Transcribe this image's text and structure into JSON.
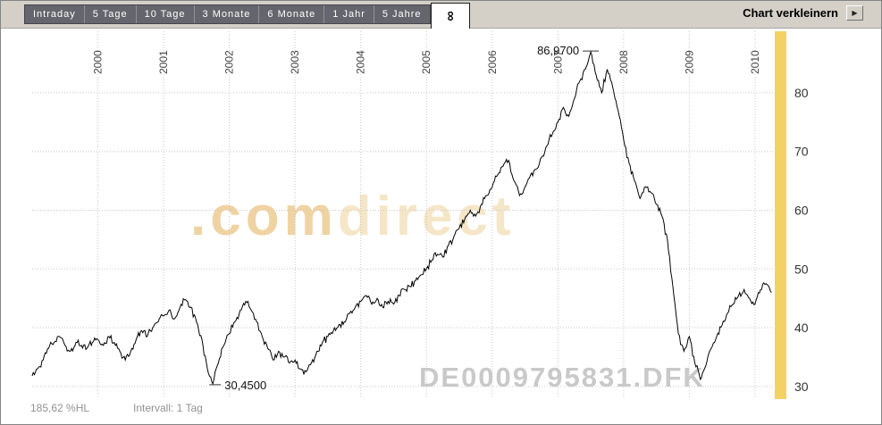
{
  "toolbar": {
    "tabs": [
      "Intraday",
      "5 Tage",
      "10 Tage",
      "3 Monate",
      "6 Monate",
      "1 Jahr",
      "5 Jahre"
    ],
    "active_tab": "∞",
    "shrink_label": "Chart verkleinern",
    "shrink_button_icon": "▶"
  },
  "status": {
    "range_label": "185,62 %HL",
    "interval_label": "Intervall: 1 Tag"
  },
  "watermarks": {
    "brand_prefix": ".com",
    "brand_suffix": "direct",
    "instrument": "DE0009795831.DFK"
  },
  "annotations": {
    "high": {
      "label": "86,9700",
      "x": 2007.5,
      "value": 86.97
    },
    "low": {
      "label": "30,4500",
      "x": 2001.75,
      "value": 30.45
    }
  },
  "chart_data": {
    "type": "line",
    "title": "",
    "xlabel": "",
    "ylabel": "",
    "x_start": 1999.0,
    "x_step": 0.0833333,
    "values": [
      31.8,
      33.0,
      34.5,
      36.5,
      37.5,
      38.5,
      37.0,
      36.0,
      37.5,
      37.0,
      36.5,
      37.5,
      38.0,
      37.0,
      38.5,
      37.5,
      36.0,
      34.5,
      36.0,
      38.0,
      39.5,
      38.5,
      40.0,
      41.0,
      42.0,
      43.0,
      41.5,
      43.5,
      44.8,
      43.5,
      41.0,
      38.0,
      33.0,
      30.45,
      34.0,
      37.0,
      39.0,
      41.0,
      43.0,
      44.5,
      43.0,
      41.0,
      38.5,
      36.5,
      34.5,
      36.0,
      35.0,
      34.0,
      34.5,
      33.0,
      32.5,
      34.0,
      36.0,
      37.5,
      38.5,
      39.5,
      40.5,
      41.0,
      42.5,
      43.5,
      44.5,
      45.5,
      44.0,
      45.0,
      43.5,
      44.5,
      44.0,
      45.5,
      46.5,
      47.0,
      48.0,
      49.0,
      50.0,
      51.5,
      52.5,
      52.0,
      54.0,
      55.5,
      57.0,
      58.5,
      60.0,
      59.0,
      61.0,
      62.5,
      64.0,
      66.0,
      67.5,
      68.5,
      65.0,
      62.5,
      64.0,
      66.0,
      67.0,
      69.0,
      71.0,
      73.0,
      75.0,
      77.5,
      76.0,
      79.0,
      82.0,
      84.0,
      86.97,
      83.0,
      80.0,
      84.0,
      81.0,
      77.0,
      72.0,
      68.0,
      65.0,
      62.0,
      64.0,
      63.0,
      61.0,
      59.0,
      55.0,
      47.0,
      39.0,
      36.0,
      38.5,
      34.0,
      31.2,
      33.5,
      36.5,
      38.5,
      40.5,
      42.5,
      44.0,
      45.5,
      46.5,
      45.0,
      44.0,
      46.5,
      47.5,
      46.0
    ],
    "high": 86.97,
    "low": 30.45,
    "x_ticks": [
      2000,
      2001,
      2002,
      2003,
      2004,
      2005,
      2006,
      2007,
      2008,
      2009,
      2010
    ],
    "x_tick_labels": [
      "2000",
      "2001",
      "2002",
      "2003",
      "2004",
      "2005",
      "2006",
      "2007",
      "2008",
      "2009",
      "2010"
    ],
    "y_ticks": [
      30,
      40,
      50,
      60,
      70,
      80
    ],
    "xlim": [
      1999.0,
      2010.3
    ],
    "ylim": [
      28.0,
      88.5
    ],
    "grid": "dotted",
    "legend": "none",
    "line_color": "#000000",
    "grid_color": "#c9c9c9",
    "highlight_bar_color": "#f2d262"
  }
}
